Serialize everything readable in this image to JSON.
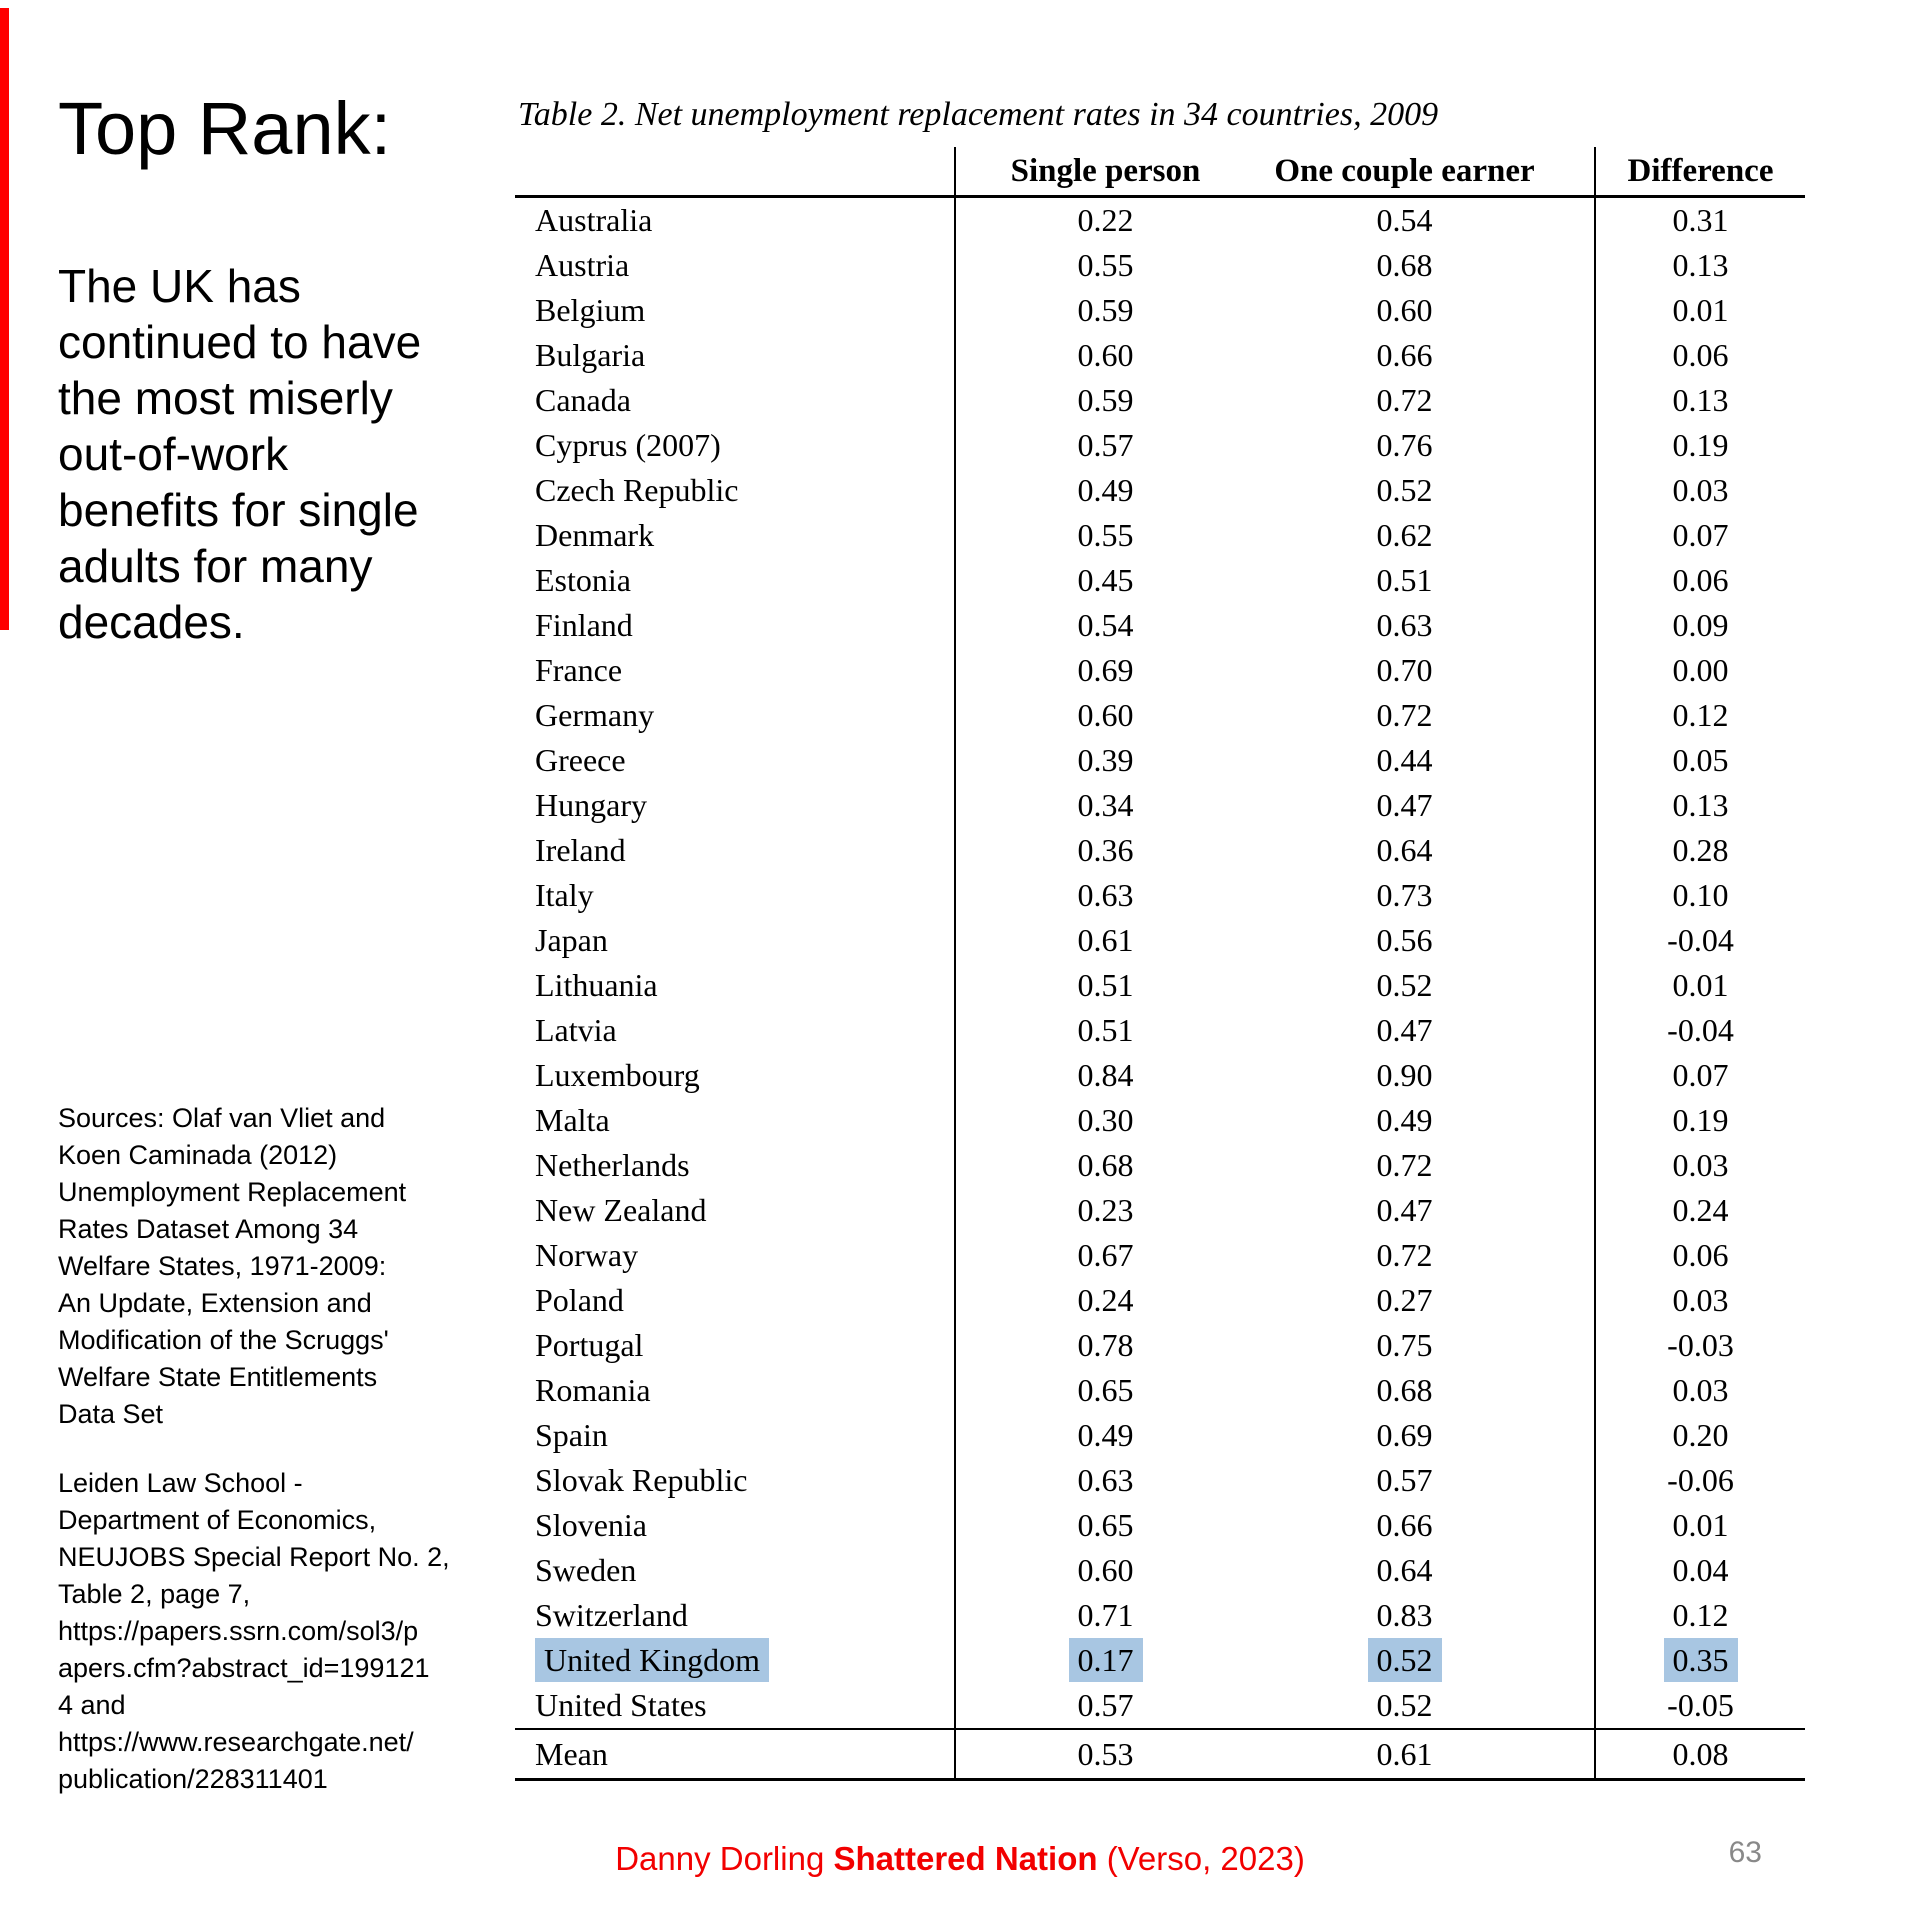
{
  "slide": {
    "title": "Top Rank:",
    "body": "The UK has\ncontinued to have\nthe most miserly\nout-of-work\nbenefits for single\nadults for many\ndecades.",
    "sources_1": "Sources: Olaf van Vliet and\nKoen Caminada (2012)\nUnemployment Replacement\nRates Dataset Among 34\nWelfare States, 1971-2009:\nAn Update, Extension and\nModification of the Scruggs'\nWelfare State Entitlements\nData Set",
    "sources_2": "Leiden Law School -\nDepartment of Economics,\nNEUJOBS Special Report No. 2,\nTable 2, page 7,\nhttps://papers.ssrn.com/sol3/p\napers.cfm?abstract_id=199121\n4 and\nhttps://www.researchgate.net/\npublication/228311401",
    "footer": {
      "prefix": "Danny Dorling ",
      "book": "Shattered Nation",
      "suffix": " (Verso, 2023)"
    },
    "page_number": "63",
    "colors": {
      "accent_red": "#FF0000",
      "footer_red": "#F20000",
      "highlight_blue": "#A8C6E2",
      "page_number_gray": "#898989"
    }
  },
  "chart_data": {
    "type": "table",
    "title": "Table 2. Net unemployment replacement rates in 34 countries, 2009",
    "columns": [
      "",
      "Single person",
      "One couple earner",
      "Difference"
    ],
    "highlight_note": "United Kingdom row values highlighted in light blue",
    "rows": [
      {
        "country": "Australia",
        "single": "0.22",
        "couple": "0.54",
        "difference": "0.31"
      },
      {
        "country": "Austria",
        "single": "0.55",
        "couple": "0.68",
        "difference": "0.13"
      },
      {
        "country": "Belgium",
        "single": "0.59",
        "couple": "0.60",
        "difference": "0.01"
      },
      {
        "country": "Bulgaria",
        "single": "0.60",
        "couple": "0.66",
        "difference": "0.06"
      },
      {
        "country": "Canada",
        "single": "0.59",
        "couple": "0.72",
        "difference": "0.13"
      },
      {
        "country": "Cyprus (2007)",
        "single": "0.57",
        "couple": "0.76",
        "difference": "0.19"
      },
      {
        "country": "Czech Republic",
        "single": "0.49",
        "couple": "0.52",
        "difference": "0.03"
      },
      {
        "country": "Denmark",
        "single": "0.55",
        "couple": "0.62",
        "difference": "0.07"
      },
      {
        "country": "Estonia",
        "single": "0.45",
        "couple": "0.51",
        "difference": "0.06"
      },
      {
        "country": "Finland",
        "single": "0.54",
        "couple": "0.63",
        "difference": "0.09"
      },
      {
        "country": "France",
        "single": "0.69",
        "couple": "0.70",
        "difference": "0.00"
      },
      {
        "country": "Germany",
        "single": "0.60",
        "couple": "0.72",
        "difference": "0.12"
      },
      {
        "country": "Greece",
        "single": "0.39",
        "couple": "0.44",
        "difference": "0.05"
      },
      {
        "country": "Hungary",
        "single": "0.34",
        "couple": "0.47",
        "difference": "0.13"
      },
      {
        "country": "Ireland",
        "single": "0.36",
        "couple": "0.64",
        "difference": "0.28"
      },
      {
        "country": "Italy",
        "single": "0.63",
        "couple": "0.73",
        "difference": "0.10"
      },
      {
        "country": "Japan",
        "single": "0.61",
        "couple": "0.56",
        "difference": "-0.04"
      },
      {
        "country": "Lithuania",
        "single": "0.51",
        "couple": "0.52",
        "difference": "0.01"
      },
      {
        "country": "Latvia",
        "single": "0.51",
        "couple": "0.47",
        "difference": "-0.04"
      },
      {
        "country": "Luxembourg",
        "single": "0.84",
        "couple": "0.90",
        "difference": "0.07"
      },
      {
        "country": "Malta",
        "single": "0.30",
        "couple": "0.49",
        "difference": "0.19"
      },
      {
        "country": "Netherlands",
        "single": "0.68",
        "couple": "0.72",
        "difference": "0.03"
      },
      {
        "country": "New Zealand",
        "single": "0.23",
        "couple": "0.47",
        "difference": "0.24"
      },
      {
        "country": "Norway",
        "single": "0.67",
        "couple": "0.72",
        "difference": "0.06"
      },
      {
        "country": "Poland",
        "single": "0.24",
        "couple": "0.27",
        "difference": "0.03"
      },
      {
        "country": "Portugal",
        "single": "0.78",
        "couple": "0.75",
        "difference": "-0.03"
      },
      {
        "country": "Romania",
        "single": "0.65",
        "couple": "0.68",
        "difference": "0.03"
      },
      {
        "country": "Spain",
        "single": "0.49",
        "couple": "0.69",
        "difference": "0.20"
      },
      {
        "country": "Slovak Republic",
        "single": "0.63",
        "couple": "0.57",
        "difference": "-0.06"
      },
      {
        "country": "Slovenia",
        "single": "0.65",
        "couple": "0.66",
        "difference": "0.01"
      },
      {
        "country": "Sweden",
        "single": "0.60",
        "couple": "0.64",
        "difference": "0.04"
      },
      {
        "country": "Switzerland",
        "single": "0.71",
        "couple": "0.83",
        "difference": "0.12"
      },
      {
        "country": "United Kingdom",
        "single": "0.17",
        "couple": "0.52",
        "difference": "0.35",
        "highlight": true
      },
      {
        "country": "United States",
        "single": "0.57",
        "couple": "0.52",
        "difference": "-0.05"
      },
      {
        "country": "Mean",
        "single": "0.53",
        "couple": "0.61",
        "difference": "0.08",
        "mean": true
      }
    ]
  }
}
